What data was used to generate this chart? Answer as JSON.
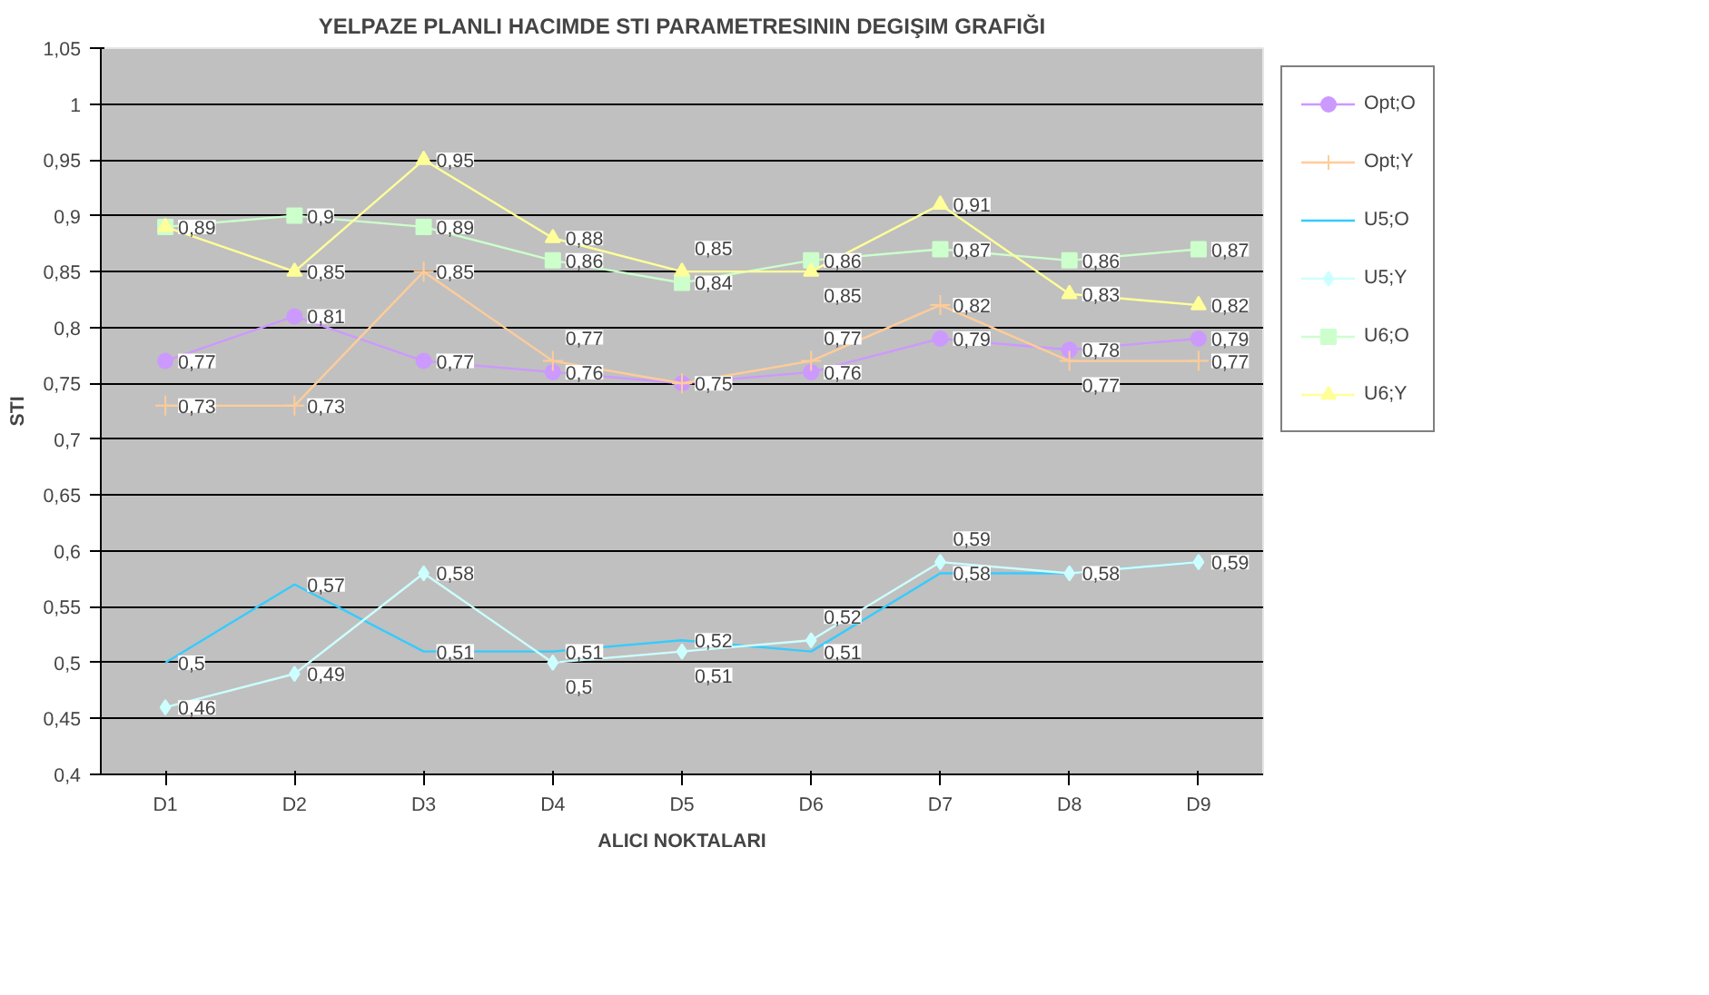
{
  "chart_data": {
    "type": "line",
    "title": "YELPAZE PLANLI HACIMDE STI PARAMETRESININ DEGIŞIM GRAFIĞI",
    "xlabel": "ALICI NOKTALARI",
    "ylabel": "STI",
    "categories": [
      "D1",
      "D2",
      "D3",
      "D4",
      "D5",
      "D6",
      "D7",
      "D8",
      "D9"
    ],
    "series": [
      {
        "name": "Opt;O",
        "color": "#cc99ff",
        "marker": "circle",
        "values": [
          0.77,
          0.81,
          0.77,
          0.76,
          0.75,
          0.76,
          0.79,
          0.78,
          0.79
        ],
        "value_labels": [
          "0,77",
          "0,81",
          "0,77",
          "0,76",
          null,
          "0,76",
          "0,79",
          "0,78",
          "0,79"
        ]
      },
      {
        "name": "Opt;Y",
        "color": "#ffcc99",
        "marker": "cross",
        "values": [
          0.73,
          0.73,
          0.85,
          0.77,
          0.75,
          0.77,
          0.82,
          0.77,
          0.77
        ],
        "value_labels": [
          "0,73",
          "0,73",
          "0,85",
          "0,77",
          "0,75",
          "0,77",
          "0,82",
          "0,77",
          "0,77"
        ]
      },
      {
        "name": "U5;O",
        "color": "#33ccff",
        "marker": "none",
        "values": [
          0.5,
          0.57,
          0.51,
          0.51,
          0.52,
          0.51,
          0.58,
          0.58,
          0.59
        ],
        "value_labels": [
          "0,5",
          "0,57",
          "0,51",
          "0,51",
          "0,52",
          "0,51",
          "0,58",
          null,
          null
        ]
      },
      {
        "name": "U5;Y",
        "color": "#ccffff",
        "marker": "diamond",
        "values": [
          0.46,
          0.49,
          0.58,
          0.5,
          0.51,
          0.52,
          0.59,
          0.58,
          0.59
        ],
        "value_labels": [
          "0,46",
          "0,49",
          "0,58",
          "0,5",
          "0,51",
          "0,52",
          "0,59",
          "0,58",
          "0,59"
        ]
      },
      {
        "name": "U6;O",
        "color": "#ccffcc",
        "marker": "square",
        "values": [
          0.89,
          0.9,
          0.89,
          0.86,
          0.84,
          0.86,
          0.87,
          0.86,
          0.87
        ],
        "value_labels": [
          "0,89",
          "0,9",
          "0,89",
          "0,86",
          "0,84",
          "0,86",
          "0,87",
          "0,86",
          "0,87"
        ]
      },
      {
        "name": "U6;Y",
        "color": "#ffff99",
        "marker": "triangle",
        "values": [
          0.89,
          0.85,
          0.95,
          0.88,
          0.85,
          0.85,
          0.91,
          0.83,
          0.82
        ],
        "value_labels": [
          null,
          "0,85",
          "0,95",
          "0,88",
          "0,85",
          "0,85",
          "0,91",
          "0,83",
          "0,82"
        ]
      }
    ],
    "ylim": [
      0.4,
      1.05
    ],
    "yticks": [
      {
        "value": 0.4,
        "label": "0,4"
      },
      {
        "value": 0.45,
        "label": "0,45"
      },
      {
        "value": 0.5,
        "label": "0,5"
      },
      {
        "value": 0.55,
        "label": "0,55"
      },
      {
        "value": 0.6,
        "label": "0,6"
      },
      {
        "value": 0.65,
        "label": "0,65"
      },
      {
        "value": 0.7,
        "label": "0,7"
      },
      {
        "value": 0.75,
        "label": "0,75"
      },
      {
        "value": 0.8,
        "label": "0,8"
      },
      {
        "value": 0.85,
        "label": "0,85"
      },
      {
        "value": 0.9,
        "label": "0,9"
      },
      {
        "value": 0.95,
        "label": "0,95"
      },
      {
        "value": 1,
        "label": "1"
      },
      {
        "value": 1.05,
        "label": "1,05"
      }
    ],
    "grid": "y",
    "legend": "right",
    "line_style": "solid"
  }
}
